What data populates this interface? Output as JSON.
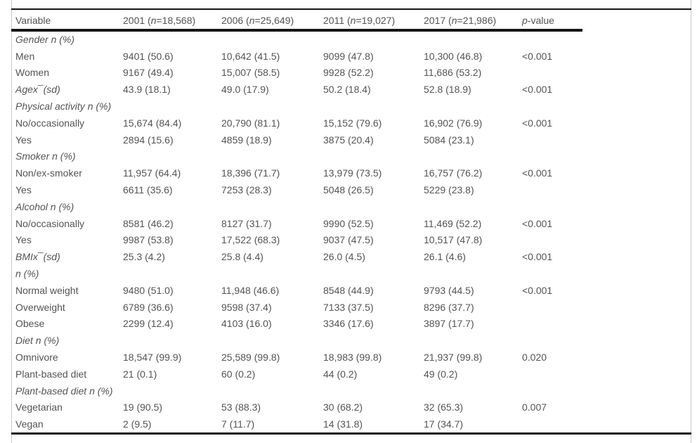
{
  "colors": {
    "text": "#545458",
    "rule": "#161616",
    "page_edge": "#c9c9c9",
    "background": "#ffffff"
  },
  "table": {
    "header": {
      "variable": "Variable",
      "year_columns": [
        {
          "pre": "2001 (",
          "n": "n",
          "post": "=18,568)"
        },
        {
          "pre": "2006 (",
          "n": "n",
          "post": "=25,649)"
        },
        {
          "pre": "2011 (",
          "n": "n",
          "post": "=19,027)"
        },
        {
          "pre": "2017 (",
          "n": "n",
          "post": "=21,986)"
        }
      ],
      "p_italic": "p",
      "p_rest": "-value"
    },
    "rows": [
      {
        "type": "section",
        "label": "Gender n (%)"
      },
      {
        "type": "data",
        "label": "Men",
        "values": [
          "9401 (50.6)",
          "10,642 (41.5)",
          "9099 (47.8)",
          "10,300 (46.8)"
        ],
        "p": "<0.001"
      },
      {
        "type": "data",
        "label": "Women",
        "values": [
          "9167 (49.4)",
          "15,007 (58.5)",
          "9928 (52.2)",
          "11,686 (53.2)"
        ],
        "p": ""
      },
      {
        "type": "mean",
        "label": "Agex¯(sd)",
        "values": [
          "43.9 (18.1)",
          "49.0 (17.9)",
          "50.2 (18.4)",
          "52.8 (18.9)"
        ],
        "p": "<0.001"
      },
      {
        "type": "section",
        "label": "Physical activity n (%)"
      },
      {
        "type": "data",
        "label": "No/occasionally",
        "values": [
          "15,674 (84.4)",
          "20,790 (81.1)",
          "15,152 (79.6)",
          "16,902 (76.9)"
        ],
        "p": "<0.001"
      },
      {
        "type": "data",
        "label": "Yes",
        "values": [
          "2894 (15.6)",
          "4859 (18.9)",
          "3875 (20.4)",
          "5084 (23.1)"
        ],
        "p": ""
      },
      {
        "type": "section",
        "label": "Smoker n (%)"
      },
      {
        "type": "data",
        "label": "Non/ex-smoker",
        "values": [
          "11,957 (64.4)",
          "18,396 (71.7)",
          "13,979 (73.5)",
          "16,757 (76.2)"
        ],
        "p": "<0.001"
      },
      {
        "type": "data",
        "label": "Yes",
        "values": [
          "6611 (35.6)",
          "7253 (28.3)",
          "5048 (26.5)",
          "5229 (23.8)"
        ],
        "p": ""
      },
      {
        "type": "section",
        "label": "Alcohol n (%)"
      },
      {
        "type": "data",
        "label": "No/occasionally",
        "values": [
          "8581 (46.2)",
          "8127 (31.7)",
          "9990 (52.5)",
          "11,469 (52.2)"
        ],
        "p": "<0.001"
      },
      {
        "type": "data",
        "label": "Yes",
        "values": [
          "9987 (53.8)",
          "17,522 (68.3)",
          "9037 (47.5)",
          "10,517 (47.8)"
        ],
        "p": ""
      },
      {
        "type": "mean",
        "label": "BMIx¯(sd)",
        "values": [
          "25.3 (4.2)",
          "25.8 (4.4)",
          "26.0 (4.5)",
          "26.1 (4.6)"
        ],
        "p": "<0.001"
      },
      {
        "type": "section",
        "label": "n (%)"
      },
      {
        "type": "data",
        "label": "Normal weight",
        "values": [
          "9480 (51.0)",
          "11,948 (46.6)",
          "8548 (44.9)",
          "9793 (44.5)"
        ],
        "p": "<0.001"
      },
      {
        "type": "data",
        "label": "Overweight",
        "values": [
          "6789 (36.6)",
          "9598 (37.4)",
          "7133 (37.5)",
          "8296 (37.7)"
        ],
        "p": ""
      },
      {
        "type": "data",
        "label": "Obese",
        "values": [
          "2299 (12.4)",
          "4103 (16.0)",
          "3346 (17.6)",
          "3897 (17.7)"
        ],
        "p": ""
      },
      {
        "type": "section",
        "label": "Diet n (%)"
      },
      {
        "type": "data",
        "label": "Omnivore",
        "values": [
          "18,547 (99.9)",
          "25,589 (99.8)",
          "18,983 (99.8)",
          "21,937 (99.8)"
        ],
        "p": "0.020"
      },
      {
        "type": "data",
        "label": "Plant-based diet",
        "values": [
          "21 (0.1)",
          "60 (0.2)",
          "44 (0.2)",
          "49 (0.2)"
        ],
        "p": ""
      },
      {
        "type": "section",
        "label": "Plant-based diet n (%)"
      },
      {
        "type": "data",
        "label": "Vegetarian",
        "values": [
          "19 (90.5)",
          "53 (88.3)",
          "30 (68.2)",
          "32 (65.3)"
        ],
        "p": "0.007"
      },
      {
        "type": "data",
        "label": "Vegan",
        "values": [
          "2 (9.5)",
          "7 (11.7)",
          "14 (31.8)",
          "17 (34.7)"
        ],
        "p": ""
      }
    ]
  }
}
